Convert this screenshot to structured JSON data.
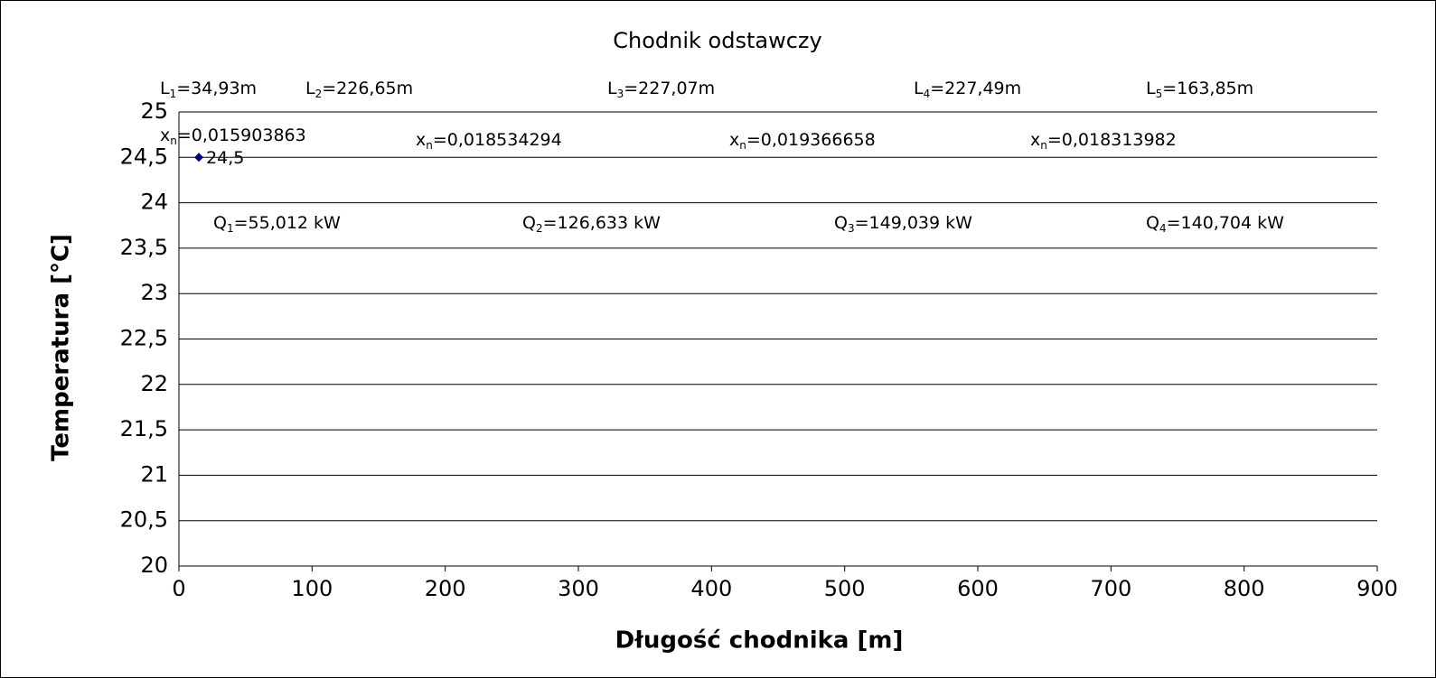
{
  "chart_data": {
    "type": "scatter",
    "title": "Chodnik odstawczy",
    "x_label": "Długość chodnika [m]",
    "y_label": "Temperatura [°C]",
    "x": [
      15
    ],
    "values": [
      24.5
    ],
    "value_labels": [
      "24,5"
    ],
    "color": "#000080",
    "xlim": [
      0,
      900
    ],
    "xticks": [
      0,
      100,
      200,
      300,
      400,
      500,
      600,
      700,
      800,
      900
    ],
    "ylim": [
      20,
      25
    ],
    "yticks": [
      20,
      {
        "value": 20.5,
        "label": "20,5"
      },
      21,
      {
        "value": 21.5,
        "label": "21,5"
      },
      22,
      {
        "value": 22.5,
        "label": "22,5"
      },
      23,
      {
        "value": 23.5,
        "label": "23,5"
      },
      24,
      {
        "value": 24.5,
        "label": "24,5"
      },
      25
    ],
    "grid": true,
    "annotations": [
      {
        "base": "L",
        "sub": "1",
        "rest": "=34,93m"
      },
      {
        "base": "L",
        "sub": "2",
        "rest": "=226,65m"
      },
      {
        "base": "L",
        "sub": "3",
        "rest": "=227,07m"
      },
      {
        "base": "L",
        "sub": "4",
        "rest": "=227,49m"
      },
      {
        "base": "L",
        "sub": "5",
        "rest": "=163,85m"
      },
      {
        "base": "x",
        "sub": "n",
        "rest": "=0,015903863"
      },
      {
        "base": "x",
        "sub": "n",
        "rest": "=0,018534294"
      },
      {
        "base": "x",
        "sub": "n",
        "rest": "=0,019366658"
      },
      {
        "base": "x",
        "sub": "n",
        "rest": "=0,018313982"
      },
      {
        "base": "Q",
        "sub": "1",
        "rest": "=55,012 kW"
      },
      {
        "base": "Q",
        "sub": "2",
        "rest": "=126,633 kW"
      },
      {
        "base": "Q",
        "sub": "3",
        "rest": "=149,039 kW"
      },
      {
        "base": "Q",
        "sub": "4",
        "rest": "=140,704 kW"
      }
    ]
  }
}
